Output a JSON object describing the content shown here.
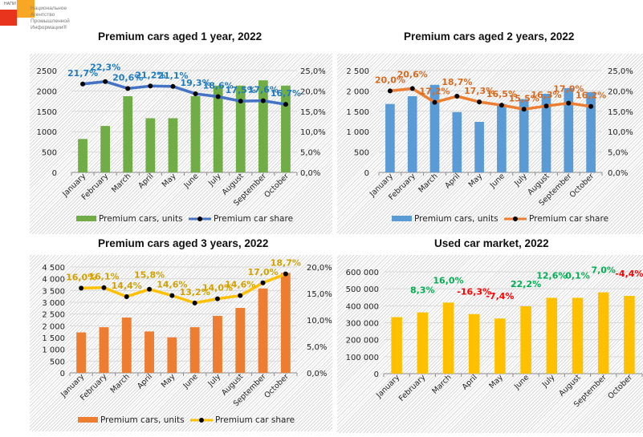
{
  "logo": {
    "tag": "НАПИ",
    "name_lines": "Национальное\nАгентство\nПромышленной\nИнформации®",
    "colors": {
      "red": "#e8341c",
      "orange": "#f7a723"
    }
  },
  "chart_data": [
    {
      "id": "chart1",
      "type": "bar+line",
      "title": "Premium cars aged 1 year, 2022",
      "categories": [
        "January",
        "February",
        "March",
        "April",
        "May",
        "June",
        "July",
        "August",
        "September",
        "October"
      ],
      "series": [
        {
          "name": "Premium cars, units",
          "type": "bar",
          "axis": "left",
          "color": "#70ad47",
          "values": [
            820,
            1140,
            1870,
            1330,
            1330,
            1870,
            2130,
            2130,
            2260,
            2130
          ]
        },
        {
          "name": "Premium car share",
          "type": "line",
          "axis": "right",
          "color": "#4472c4",
          "label_color": "#1f7bc1",
          "values": [
            21.7,
            22.3,
            20.6,
            21.2,
            21.1,
            19.3,
            18.6,
            17.5,
            17.6,
            16.7
          ],
          "labels": [
            "21,7%",
            "22,3%",
            "20,6%",
            "21,2%",
            "21,1%",
            "19,3%",
            "18,6%",
            "17,5%",
            "17,6%",
            "16,7%"
          ]
        }
      ],
      "left_axis": {
        "min": 0,
        "max": 2500,
        "ticks": [
          "0",
          "500",
          "1000",
          "1500",
          "2000",
          "2500"
        ]
      },
      "right_axis": {
        "min": 0,
        "max": 25,
        "ticks": [
          "0,0%",
          "5,0%",
          "10,0%",
          "15,0%",
          "20,0%",
          "25,0%"
        ]
      },
      "grid": true,
      "legend": "bottom"
    },
    {
      "id": "chart2",
      "type": "bar+line",
      "title": "Premium cars aged 2 years, 2022",
      "categories": [
        "January",
        "February",
        "March",
        "April",
        "May",
        "June",
        "July",
        "August",
        "September",
        "October"
      ],
      "series": [
        {
          "name": "Premium cars, units",
          "type": "bar",
          "axis": "left",
          "color": "#5b9bd5",
          "values": [
            1680,
            1870,
            2150,
            1480,
            1240,
            1680,
            1800,
            1930,
            2070,
            1970
          ]
        },
        {
          "name": "Premium car share",
          "type": "line",
          "axis": "right",
          "color": "#ed7d31",
          "label_color": "#d9691e",
          "values": [
            20.0,
            20.6,
            17.2,
            18.7,
            17.3,
            16.5,
            15.5,
            16.3,
            17.0,
            16.2
          ],
          "labels": [
            "20,0%",
            "20,6%",
            "17,2%",
            "18,7%",
            "17,3%",
            "16,5%",
            "15,5%",
            "16,3%",
            "17,0%",
            "16,2%"
          ]
        }
      ],
      "left_axis": {
        "min": 0,
        "max": 2500,
        "ticks": [
          "0",
          "500",
          "1 000",
          "1 500",
          "2 000",
          "2 500"
        ]
      },
      "right_axis": {
        "min": 0,
        "max": 25,
        "ticks": [
          "0,0%",
          "5,0%",
          "10,0%",
          "15,0%",
          "20,0%",
          "25,0%"
        ]
      },
      "grid": true,
      "legend": "bottom"
    },
    {
      "id": "chart3",
      "type": "bar+line",
      "title": "Premium cars aged 3 years, 2022",
      "categories": [
        "January",
        "February",
        "March",
        "April",
        "May",
        "June",
        "July",
        "August",
        "September",
        "October"
      ],
      "series": [
        {
          "name": "Premium cars, units",
          "type": "bar",
          "axis": "left",
          "color": "#ed7d31",
          "values": [
            1720,
            1940,
            2350,
            1760,
            1510,
            1940,
            2420,
            2760,
            3590,
            4250
          ]
        },
        {
          "name": "Premium car share",
          "type": "line",
          "axis": "right",
          "color": "#ffc000",
          "label_color": "#d4a000",
          "values": [
            16.0,
            16.1,
            14.4,
            15.8,
            14.6,
            13.2,
            14.0,
            14.6,
            17.0,
            18.7
          ],
          "labels": [
            "16,0%",
            "16,1%",
            "14,4%",
            "15,8%",
            "14,6%",
            "13,2%",
            "14,0%",
            "14,6%",
            "17,0%",
            "18,7%"
          ]
        }
      ],
      "left_axis": {
        "min": 0,
        "max": 4500,
        "ticks": [
          "0",
          "500",
          "1 000",
          "1 500",
          "2 000",
          "2 500",
          "3 000",
          "3 500",
          "4 000",
          "4 500"
        ]
      },
      "right_axis": {
        "min": 0,
        "max": 20,
        "ticks": [
          "0,0%",
          "5,0%",
          "10,0%",
          "15,0%",
          "20,0%"
        ]
      },
      "grid": true,
      "legend": "bottom"
    },
    {
      "id": "chart4",
      "type": "bar",
      "title": "Used car market, 2022",
      "categories": [
        "January",
        "February",
        "March",
        "April",
        "May",
        "June",
        "July",
        "August",
        "September",
        "October"
      ],
      "series": [
        {
          "name": "Used car market",
          "type": "bar",
          "axis": "left",
          "color": "#ffc000",
          "values": [
            333000,
            361000,
            419000,
            351000,
            325000,
            397000,
            447000,
            447000,
            479000,
            458000
          ]
        }
      ],
      "annotations": {
        "labels": [
          "",
          "8,3%",
          "16,0%",
          "-16,3%",
          "-7,4%",
          "22,2%",
          "12,6%",
          "0,1%",
          "7,0%",
          "-4,4%"
        ],
        "values": [
          null,
          8.3,
          16.0,
          -16.3,
          -7.4,
          22.2,
          12.6,
          0.1,
          7.0,
          -4.4
        ],
        "positive_color": "#00b050",
        "negative_color": "#ff0000"
      },
      "left_axis": {
        "min": 0,
        "max": 600000,
        "ticks": [
          "0",
          "100 000",
          "200 000",
          "300 000",
          "400 000",
          "500 000",
          "600 000"
        ]
      },
      "grid": true,
      "legend": "none"
    }
  ]
}
